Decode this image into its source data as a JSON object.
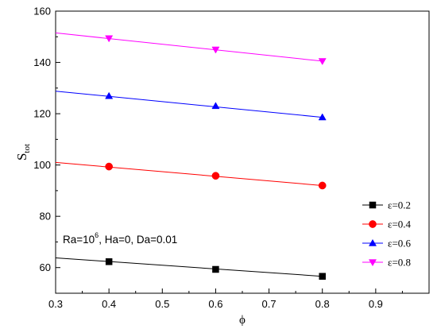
{
  "chart_data": {
    "type": "line",
    "xlabel": "ϕ",
    "ylabel": {
      "main": "S",
      "sub": "tot"
    },
    "xlim": [
      0.3,
      1.0
    ],
    "ylim": [
      50,
      160
    ],
    "x_ticks": [
      "0.3",
      "0.4",
      "0.5",
      "0.6",
      "0.7",
      "0.8",
      "0.9"
    ],
    "y_ticks": [
      "60",
      "80",
      "100",
      "120",
      "140",
      "160"
    ],
    "grid": false,
    "legend_position": "bottom-right",
    "annotation": {
      "prefix": "Ra=10",
      "superscript": "6",
      "suffix": ", Ha=0, Da=0.01"
    },
    "series": [
      {
        "name": "ε=0.2",
        "color": "#000000",
        "marker": "square",
        "line": {
          "x": [
            0.3,
            0.8
          ],
          "y": [
            63.8,
            56.6
          ]
        },
        "points": {
          "x": [
            0.4,
            0.6,
            0.8
          ],
          "y": [
            62.3,
            59.3,
            56.6
          ]
        }
      },
      {
        "name": "ε=0.4",
        "color": "#ff0000",
        "marker": "circle",
        "line": {
          "x": [
            0.3,
            0.8
          ],
          "y": [
            101.0,
            92.0
          ]
        },
        "points": {
          "x": [
            0.4,
            0.6,
            0.8
          ],
          "y": [
            99.4,
            95.8,
            92.0
          ]
        }
      },
      {
        "name": "ε=0.6",
        "color": "#0000ff",
        "marker": "triangle-up",
        "line": {
          "x": [
            0.3,
            0.8
          ],
          "y": [
            128.8,
            118.6
          ]
        },
        "points": {
          "x": [
            0.4,
            0.6,
            0.8
          ],
          "y": [
            126.9,
            123.0,
            118.6
          ]
        }
      },
      {
        "name": "ε=0.8",
        "color": "#ff00ff",
        "marker": "triangle-down",
        "line": {
          "x": [
            0.3,
            0.8
          ],
          "y": [
            151.5,
            140.5
          ]
        },
        "points": {
          "x": [
            0.4,
            0.6,
            0.8
          ],
          "y": [
            149.4,
            145.0,
            140.5
          ]
        }
      }
    ]
  }
}
